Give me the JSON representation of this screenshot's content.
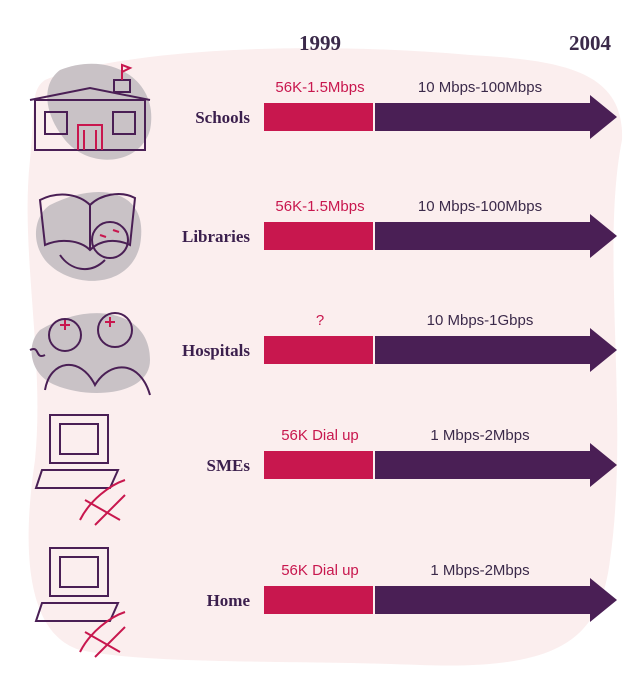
{
  "header": {
    "years": [
      "1999",
      "2004"
    ]
  },
  "rows": [
    {
      "label": "Schools",
      "speed_1999": "56K-1.5Mbps",
      "speed_2004": "10 Mbps-100Mbps"
    },
    {
      "label": "Libraries",
      "speed_1999": "56K-1.5Mbps",
      "speed_2004": "10 Mbps-100Mbps"
    },
    {
      "label": "Hospitals",
      "speed_1999": "?",
      "speed_2004": "10 Mbps-1Gbps"
    },
    {
      "label": "SMEs",
      "speed_1999": "56K Dial up",
      "speed_2004": "1 Mbps-2Mbps"
    },
    {
      "label": "Home",
      "speed_1999": "56K Dial up",
      "speed_2004": "1 Mbps-2Mbps"
    }
  ]
}
